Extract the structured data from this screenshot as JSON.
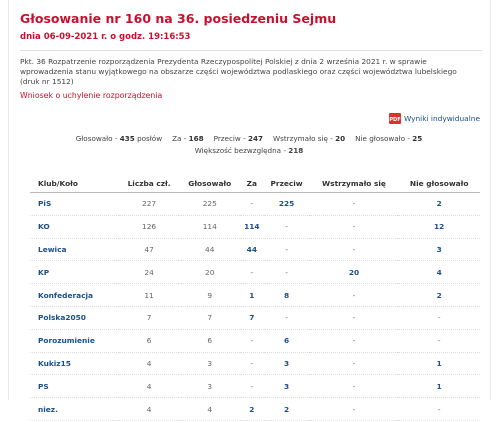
{
  "title": "Głosowanie nr 160 na 36. posiedzeniu Sejmu",
  "date": "dnia 06-09-2021 r. o godz. 19:16:53",
  "description": "Pkt. 36 Rozpatrzenie rozporządzenia Prezydenta Rzeczypospolitej Polskiej z dnia 2 września 2021 r. w sprawie wprowadzenia stanu wyjątkowego na obszarze części województwa podlaskiego oraz części województwa lubelskiego (druk nr 1512)",
  "motion": "Wniosek o uchylenie rozporządzenia",
  "individual_results": {
    "icon": "PDF",
    "label": "Wyniki indywidualne"
  },
  "summary": [
    {
      "label": "Głosowało -",
      "value": 435,
      "unit": "posłów"
    },
    {
      "label": "Za -",
      "value": 168
    },
    {
      "label": "Przeciw -",
      "value": 247
    },
    {
      "label": "Wstrzymało się -",
      "value": 20
    },
    {
      "label": "Nie głosowało -",
      "value": 25
    }
  ],
  "majority": {
    "label": "Większość bezwzględna -",
    "value": 218
  },
  "table": {
    "header": [
      "Klub/Koło",
      "Liczba czł.",
      "Głosowało",
      "Za",
      "Przeciw",
      "Wstrzymało się",
      "Nie głosowało"
    ],
    "rows": [
      [
        "PiS",
        227,
        225,
        "-",
        225,
        "-",
        2
      ],
      [
        "KO",
        126,
        114,
        114,
        "-",
        "-",
        12
      ],
      [
        "Lewica",
        47,
        44,
        44,
        "-",
        "-",
        3
      ],
      [
        "KP",
        24,
        20,
        "-",
        "-",
        20,
        4
      ],
      [
        "Konfederacja",
        11,
        9,
        1,
        8,
        "-",
        2
      ],
      [
        "Polska2050",
        7,
        7,
        7,
        "-",
        "-",
        "-"
      ],
      [
        "Porozumienie",
        6,
        6,
        "-",
        6,
        "-",
        "-"
      ],
      [
        "Kukiz15",
        4,
        3,
        "-",
        3,
        "-",
        1
      ],
      [
        "PS",
        4,
        3,
        "-",
        3,
        "-",
        1
      ],
      [
        "niez.",
        4,
        4,
        2,
        2,
        "-",
        "-"
      ]
    ]
  }
}
